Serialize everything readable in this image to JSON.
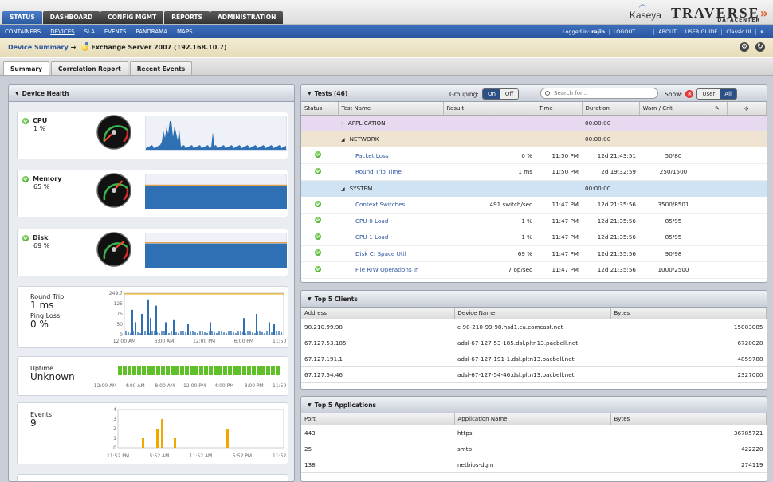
{
  "header": {
    "tabs": [
      "STATUS",
      "DASHBOARD",
      "CONFIG MGMT",
      "REPORTS",
      "ADMINISTRATION"
    ],
    "active_tab": "STATUS",
    "logo_kaseya": "Kaseya",
    "logo_traverse": "TRAVERSE",
    "logo_sub": "DATACENTER"
  },
  "subnav": {
    "items": [
      "CONTAINERS",
      "DEVICES",
      "SLA",
      "EVENTS",
      "PANORAMA",
      "MAPS"
    ],
    "active": "DEVICES",
    "logged_in_label": "Logged in:",
    "user": "rajib",
    "links": [
      "LOGOUT",
      "ABOUT",
      "USER GUIDE",
      "Classic UI"
    ]
  },
  "breadcrumb": {
    "parent": "Device Summary",
    "arrow": "→",
    "device": "Exchange Server 2007 (192.168.10.7)"
  },
  "view_tabs": [
    "Summary",
    "Correlation Report",
    "Recent Events"
  ],
  "active_view_tab": "Summary",
  "health": {
    "title": "Device Health",
    "cpu": {
      "name": "CPU",
      "value": "1 %",
      "percent": 1
    },
    "memory": {
      "name": "Memory",
      "value": "65 %",
      "percent": 65
    },
    "disk": {
      "name": "Disk",
      "value": "69 %",
      "percent": 69
    },
    "round_trip": {
      "label": "Round Trip",
      "value": "1 ms",
      "ping_label": "Ping Loss",
      "ping_value": "0 %",
      "y_ticks": [
        "249.7",
        "125",
        "75",
        "50",
        "0"
      ],
      "x_ticks": [
        "12:00 AM",
        "6:00 AM",
        "12:00 PM",
        "6:00 PM",
        "11:50 PM"
      ]
    },
    "uptime": {
      "label": "Uptime",
      "value": "Unknown",
      "x_ticks": [
        "12:00 AM",
        "4:00 AM",
        "8:00 AM",
        "12:00 PM",
        "4:00 PM",
        "8:00 PM",
        "11:50 PM"
      ]
    },
    "events": {
      "label": "Events",
      "value": "9",
      "y_ticks": [
        "4",
        "3",
        "2",
        "1",
        "0"
      ],
      "x_ticks": [
        "11:52 PM",
        "5:52 AM",
        "11:52 AM",
        "5:52 PM",
        "11:52 PM"
      ]
    }
  },
  "tests": {
    "title": "Tests (46)",
    "grouping_label": "Grouping:",
    "grouping_on": "On",
    "grouping_off": "Off",
    "search_placeholder": "Search for...",
    "show_label": "Show:",
    "show_user": "User",
    "show_all": "All",
    "columns": [
      "Status",
      "Test Name",
      "Result",
      "Time",
      "Duration",
      "Warn / Crit"
    ],
    "groups": {
      "application": {
        "name": "APPLICATION",
        "duration": "00:00:00"
      },
      "network": {
        "name": "NETWORK",
        "duration": "00:00:00"
      },
      "system": {
        "name": "SYSTEM",
        "duration": "00:00:00"
      }
    },
    "network_rows": [
      {
        "name": "Packet Loss",
        "result": "0 %",
        "time": "11:50 PM",
        "duration": "12d 21:43:51",
        "warn": "50/80"
      },
      {
        "name": "Round Trip Time",
        "result": "1 ms",
        "time": "11:50 PM",
        "duration": "2d 19:32:59",
        "warn": "250/1500"
      }
    ],
    "system_rows": [
      {
        "name": "Context Switches",
        "result": "491 switch/sec",
        "time": "11:47 PM",
        "duration": "12d 21:35:56",
        "warn": "3500/8501"
      },
      {
        "name": "CPU-0 Load",
        "result": "1 %",
        "time": "11:47 PM",
        "duration": "12d 21:35:56",
        "warn": "85/95"
      },
      {
        "name": "CPU-1 Load",
        "result": "1 %",
        "time": "11:47 PM",
        "duration": "12d 21:35:56",
        "warn": "85/95"
      },
      {
        "name": "Disk C: Space Util",
        "result": "69 %",
        "time": "11:47 PM",
        "duration": "12d 21:35:56",
        "warn": "90/98"
      },
      {
        "name": "File R/W Operations In",
        "result": "7 op/sec",
        "time": "11:47 PM",
        "duration": "12d 21:35:56",
        "warn": "1000/2500"
      }
    ]
  },
  "clients": {
    "title": "Top 5 Clients",
    "columns": [
      "Address",
      "Device Name",
      "Bytes"
    ],
    "rows": [
      {
        "address": "98.210.99.98",
        "device": "c-98-210-99-98.hsd1.ca.comcast.net",
        "bytes": "15003085"
      },
      {
        "address": "67.127.53.185",
        "device": "adsl-67-127-53-185.dsl.pltn13.pacbell.net",
        "bytes": "6720028"
      },
      {
        "address": "67.127.191.1",
        "device": "adsl-67-127-191-1.dsl.pltn13.pacbell.net",
        "bytes": "4859788"
      },
      {
        "address": "67.127.54.46",
        "device": "adsl-67-127-54-46.dsl.pltn13.pacbell.net",
        "bytes": "2327000"
      }
    ]
  },
  "apps": {
    "title": "Top 5 Applications",
    "columns": [
      "Port",
      "Application Name",
      "Bytes"
    ],
    "rows": [
      {
        "port": "443",
        "app": "https",
        "bytes": "36785721"
      },
      {
        "port": "25",
        "app": "smtp",
        "bytes": "422220"
      },
      {
        "port": "138",
        "app": "netbios-dgm",
        "bytes": "274119"
      }
    ]
  },
  "colors": {
    "ok": "#2f9a17",
    "link": "#2c55a0",
    "chart_fill": "#2f6fb3",
    "event_bar": "#f0a800",
    "uptime_bar": "#5fc127"
  }
}
